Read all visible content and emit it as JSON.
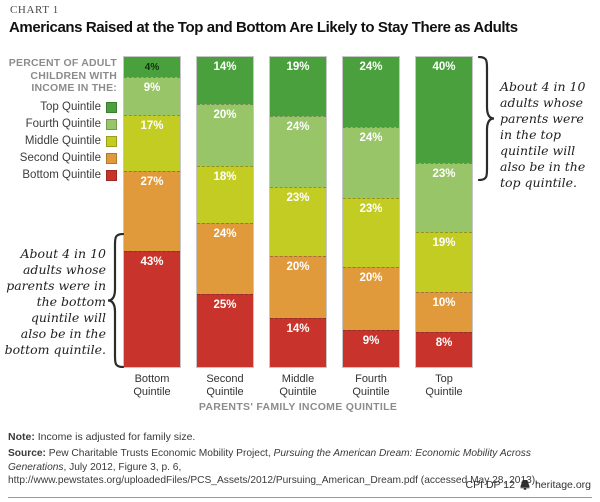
{
  "header": {
    "kicker": "CHART 1",
    "title": "Americans Raised at the Top and Bottom Are Likely to Stay There as Adults"
  },
  "legend": {
    "title": "PERCENT OF ADULT\nCHILDREN WITH\nINCOME IN THE:"
  },
  "chart_data": {
    "type": "bar",
    "stacked": true,
    "orientation": "vertical",
    "categories": [
      "Bottom Quintile",
      "Second Quintile",
      "Middle Quintile",
      "Fourth Quintile",
      "Top Quintile"
    ],
    "series": [
      {
        "name": "Top Quintile",
        "color": "#4aa03c",
        "values": [
          4,
          14,
          19,
          24,
          40
        ]
      },
      {
        "name": "Fourth Quintile",
        "color": "#97c567",
        "values": [
          9,
          20,
          24,
          24,
          23
        ]
      },
      {
        "name": "Middle Quintile",
        "color": "#c3cc23",
        "values": [
          17,
          18,
          23,
          23,
          19
        ]
      },
      {
        "name": "Second Quintile",
        "color": "#e09a3c",
        "values": [
          27,
          24,
          20,
          20,
          10
        ]
      },
      {
        "name": "Bottom Quintile",
        "color": "#c8342c",
        "values": [
          43,
          25,
          14,
          9,
          8
        ]
      }
    ],
    "value_suffix": "%",
    "dark_labels": [
      [
        0,
        0
      ]
    ],
    "xlabel": "PARENTS' FAMILY INCOME QUINTILE",
    "ylim": [
      0,
      100
    ],
    "grid": false,
    "legend_position": "left"
  },
  "annotations": {
    "right": "About 4 in 10 adults whose parents were in the top quintile will also be in the top quintile.",
    "left": "About 4 in 10 adults whose parents were in the bottom quintile will also be in the bottom quintile."
  },
  "footer": {
    "note_label": "Note:",
    "note_text": " Income is adjusted for family size.",
    "source_label": "Source:",
    "source_prefix": " Pew Charitable Trusts Economic Mobility Project, ",
    "source_title": "Pursuing the American Dream: Economic Mobility Across Generations",
    "source_suffix": ", July 2012, Figure 3, p. 6, http://www.pewstates.org/uploadedFiles/PCS_Assets/2012/Pursuing_American_Dream.pdf (accessed May 28, 2013).",
    "code": "CPI DP 12",
    "site": "heritage.org"
  }
}
